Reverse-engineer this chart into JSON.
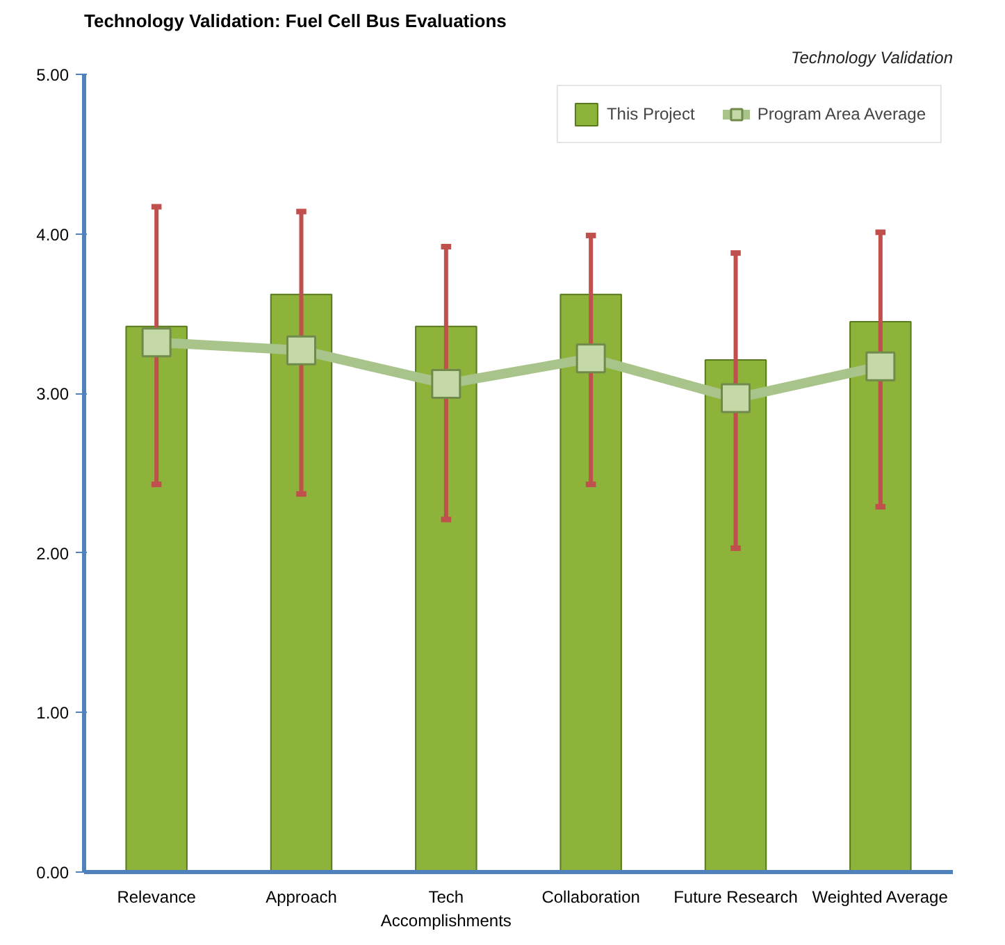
{
  "chart_data": {
    "type": "bar",
    "title": "Technology Validation: Fuel Cell Bus Evaluations",
    "subtitle": "Technology Validation",
    "categories": [
      "Relevance",
      "Approach",
      "Tech Accomplishments",
      "Collaboration",
      "Future Research",
      "Weighted Average"
    ],
    "series": [
      {
        "name": "This Project",
        "color": "#8db33a",
        "values": [
          3.42,
          3.62,
          3.42,
          3.62,
          3.21,
          3.45
        ],
        "errors": [
          [
            2.43,
            4.17
          ],
          [
            2.37,
            4.14
          ],
          [
            2.21,
            3.92
          ],
          [
            2.43,
            3.99
          ],
          [
            2.03,
            3.88
          ],
          [
            2.29,
            4.01
          ]
        ]
      },
      {
        "name": "Program Area Average",
        "type": "line",
        "color": "#a9c48a",
        "marker": "square",
        "values": [
          3.32,
          3.27,
          3.06,
          3.22,
          2.97,
          3.17
        ]
      }
    ],
    "ylim": [
      0,
      5
    ],
    "yticks": [
      {
        "value": 0,
        "label": "0.00"
      },
      {
        "value": 1,
        "label": "1.00"
      },
      {
        "value": 2,
        "label": "2.00"
      },
      {
        "value": 3,
        "label": "3.00"
      },
      {
        "value": 4,
        "label": "4.00"
      },
      {
        "value": 5,
        "label": "5.00"
      }
    ],
    "grid": false,
    "legend": "top right"
  }
}
